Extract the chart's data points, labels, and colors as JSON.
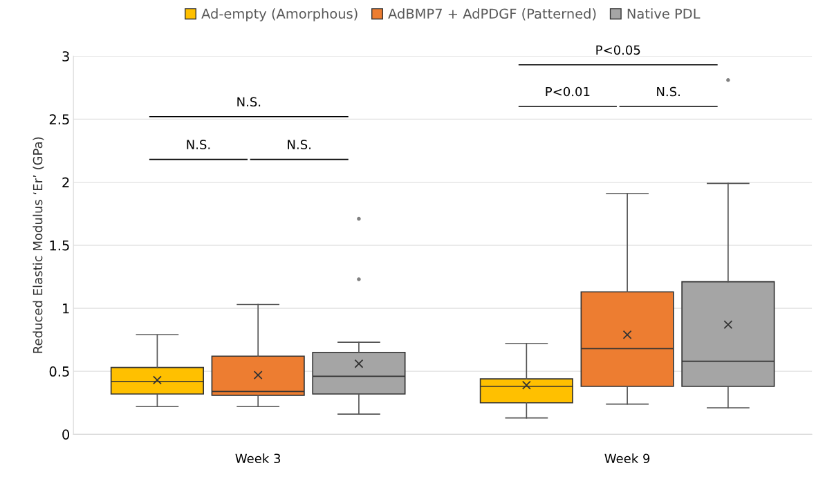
{
  "chart_data": {
    "type": "box",
    "ylabel": "Reduced Elastic Modulus ‘Er’ (GPa)",
    "categories": [
      "Week 3",
      "Week 9"
    ],
    "series": [
      {
        "name": "Ad-empty (Amorphous)",
        "color": "#ffc000",
        "boxes": [
          {
            "low": 0.22,
            "q1": 0.32,
            "median": 0.42,
            "q3": 0.53,
            "high": 0.79,
            "mean": 0.43
          },
          {
            "low": 0.13,
            "q1": 0.25,
            "median": 0.38,
            "q3": 0.44,
            "high": 0.72,
            "mean": 0.39
          }
        ]
      },
      {
        "name": "AdBMP7 + AdPDGF (Patterned)",
        "color": "#ed7d31",
        "boxes": [
          {
            "low": 0.22,
            "q1": 0.31,
            "median": 0.34,
            "q3": 0.62,
            "high": 1.03,
            "mean": 0.47
          },
          {
            "low": 0.24,
            "q1": 0.38,
            "median": 0.68,
            "q3": 1.13,
            "high": 1.91,
            "mean": 0.79
          }
        ]
      },
      {
        "name": "Native PDL",
        "color": "#a5a5a5",
        "boxes": [
          {
            "low": 0.16,
            "q1": 0.32,
            "median": 0.46,
            "q3": 0.65,
            "high": 0.73,
            "mean": 0.56,
            "outliers": [
              1.23,
              1.71
            ]
          },
          {
            "low": 0.21,
            "q1": 0.38,
            "median": 0.58,
            "q3": 1.21,
            "high": 1.99,
            "mean": 0.87,
            "outliers": [
              2.81
            ]
          }
        ]
      }
    ],
    "ylim": [
      0,
      3
    ],
    "yticks": [
      0,
      0.5,
      1,
      1.5,
      2,
      2.5,
      3
    ],
    "grid": "y",
    "legend": "top",
    "annotations": [
      "N.S.",
      "N.S.",
      "N.S.",
      "P<0.01",
      "N.S.",
      "P<0.05"
    ]
  }
}
